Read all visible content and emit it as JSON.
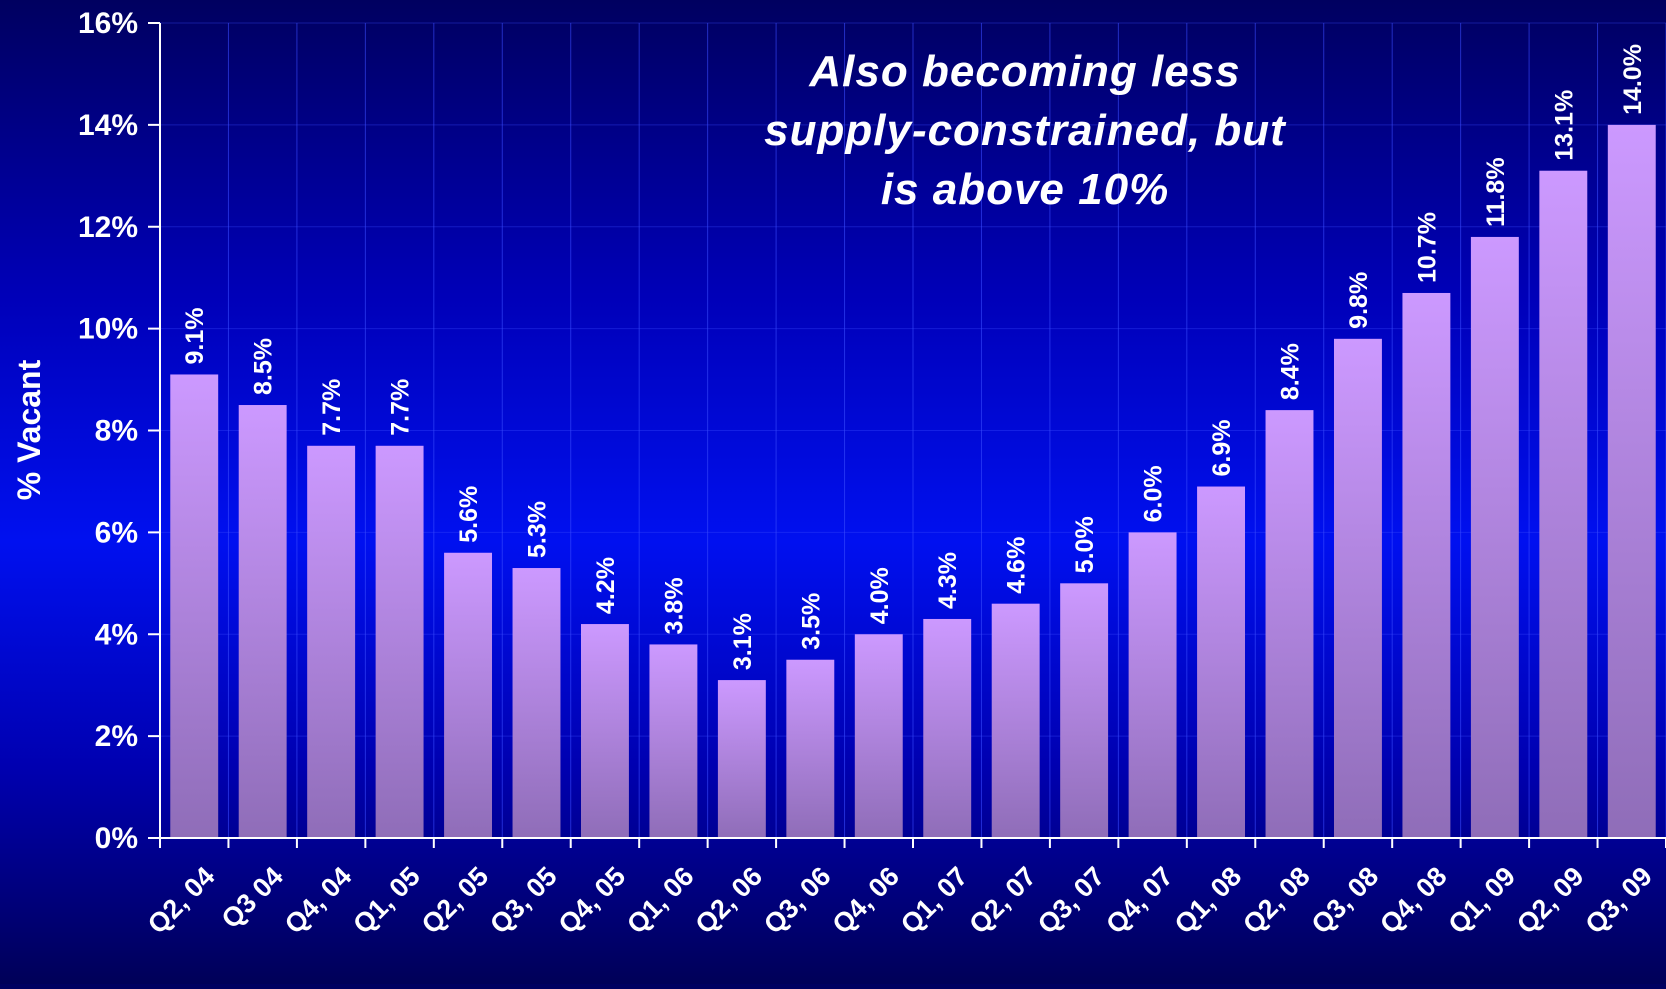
{
  "chart_data": {
    "type": "bar",
    "title": "",
    "annotation": [
      "Also becoming less",
      "supply-constrained, but",
      "is above 10%"
    ],
    "ylabel": "% Vacant",
    "xlabel": "",
    "ylim": [
      0,
      16
    ],
    "yticks": [
      "0%",
      "2%",
      "4%",
      "6%",
      "8%",
      "10%",
      "12%",
      "14%",
      "16%"
    ],
    "grid": true,
    "categories": [
      "Q2, 04",
      "Q3 04",
      "Q4, 04",
      "Q1, 05",
      "Q2, 05",
      "Q3, 05",
      "Q4, 05",
      "Q1, 06",
      "Q2, 06",
      "Q3, 06",
      "Q4, 06",
      "Q1, 07",
      "Q2, 07",
      "Q3, 07",
      "Q4, 07",
      "Q1, 08",
      "Q2, 08",
      "Q3, 08",
      "Q4, 08",
      "Q1, 09",
      "Q2, 09",
      "Q3, 09"
    ],
    "values": [
      9.1,
      8.5,
      7.7,
      7.7,
      5.6,
      5.3,
      4.2,
      3.8,
      3.1,
      3.5,
      4.0,
      4.3,
      4.6,
      5.0,
      6.0,
      6.9,
      8.4,
      9.8,
      10.7,
      11.8,
      13.1,
      14.0
    ],
    "data_labels": [
      "9.1%",
      "8.5%",
      "7.7%",
      "7.7%",
      "5.6%",
      "5.3%",
      "4.2%",
      "3.8%",
      "3.1%",
      "3.5%",
      "4.0%",
      "4.3%",
      "4.6%",
      "5.0%",
      "6.0%",
      "6.9%",
      "8.4%",
      "9.8%",
      "10.7%",
      "11.8%",
      "13.1%",
      "14.0%"
    ],
    "colors": {
      "bar_top": "#cc99ff",
      "bar_bottom": "#8f6db8",
      "text": "#ffffff",
      "axis": "#ffffff",
      "grid": "#3a4cff"
    }
  }
}
